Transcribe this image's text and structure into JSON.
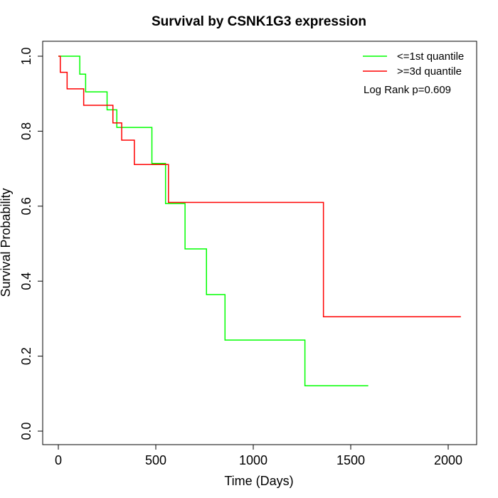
{
  "chart_data": {
    "type": "line",
    "title": "Survival by CSNK1G3 expression",
    "xlabel": "Time (Days)",
    "ylabel": "Survival Probability",
    "xlim": [
      0,
      2070
    ],
    "ylim": [
      0,
      1
    ],
    "x_ticks": [
      "0",
      "500",
      "1000",
      "1500",
      "2000"
    ],
    "y_ticks": [
      "0.0",
      "0.2",
      "0.4",
      "0.6",
      "0.8",
      "1.0"
    ],
    "x_tick_values": [
      0,
      500,
      1000,
      1500,
      2000
    ],
    "y_tick_values": [
      0.0,
      0.2,
      0.4,
      0.6,
      0.8,
      1.0
    ],
    "legend_position": "top-right",
    "annotation": "Log Rank p=0.609",
    "series": [
      {
        "name": "<=1st quantile",
        "color": "#00ff00",
        "step": true,
        "points": [
          [
            0,
            1.0
          ],
          [
            110,
            0.952
          ],
          [
            140,
            0.905
          ],
          [
            250,
            0.857
          ],
          [
            300,
            0.81
          ],
          [
            480,
            0.714
          ],
          [
            550,
            0.607
          ],
          [
            650,
            0.486
          ],
          [
            760,
            0.364
          ],
          [
            855,
            0.243
          ],
          [
            1265,
            0.121
          ],
          [
            1590,
            0.121
          ]
        ]
      },
      {
        "name": ">=3d quantile",
        "color": "#ff0000",
        "step": true,
        "points": [
          [
            0,
            1.0
          ],
          [
            10,
            0.957
          ],
          [
            45,
            0.913
          ],
          [
            130,
            0.869
          ],
          [
            280,
            0.822
          ],
          [
            325,
            0.776
          ],
          [
            390,
            0.711
          ],
          [
            565,
            0.61
          ],
          [
            1360,
            0.305
          ],
          [
            2065,
            0.305
          ]
        ]
      }
    ]
  }
}
